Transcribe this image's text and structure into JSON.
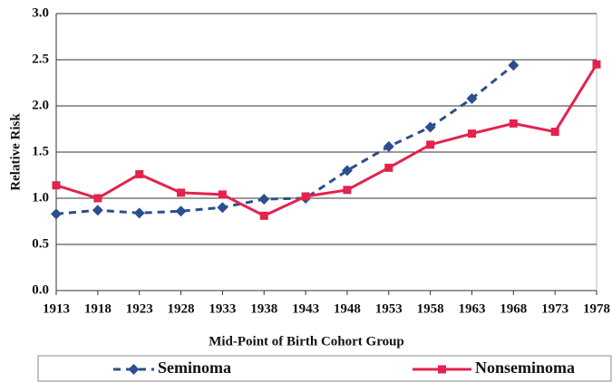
{
  "chart_data": {
    "type": "line",
    "x_label": "Mid-Point of Birth Cohort Group",
    "y_label": "Relative Risk",
    "categories": [
      "1913",
      "1918",
      "1923",
      "1928",
      "1933",
      "1938",
      "1943",
      "1948",
      "1953",
      "1958",
      "1963",
      "1968",
      "1973",
      "1978"
    ],
    "series": [
      {
        "name": "Seminoma",
        "color": "#2b4f8e",
        "line_style": "dashed",
        "marker": "diamond",
        "values": [
          0.83,
          0.87,
          0.84,
          0.86,
          0.9,
          0.99,
          1.0,
          1.3,
          1.56,
          1.77,
          2.08,
          2.44,
          null,
          null
        ]
      },
      {
        "name": "Nonseminoma",
        "color": "#e3234d",
        "line_style": "solid",
        "marker": "square",
        "values": [
          1.14,
          1.0,
          1.26,
          1.06,
          1.04,
          0.81,
          1.02,
          1.09,
          1.33,
          1.58,
          1.7,
          1.81,
          1.72,
          2.45
        ]
      }
    ],
    "ylim": [
      0,
      3
    ],
    "yticks": [
      {
        "value": 0,
        "label": "0.0"
      },
      {
        "value": 0.5,
        "label": "0.5"
      },
      {
        "value": 1,
        "label": "1.0"
      },
      {
        "value": 1.5,
        "label": "1.5"
      },
      {
        "value": 2,
        "label": "2.0"
      },
      {
        "value": 2.5,
        "label": "2.5"
      },
      {
        "value": 3,
        "label": "3.0"
      }
    ],
    "grid": true,
    "legend": "bottom"
  }
}
